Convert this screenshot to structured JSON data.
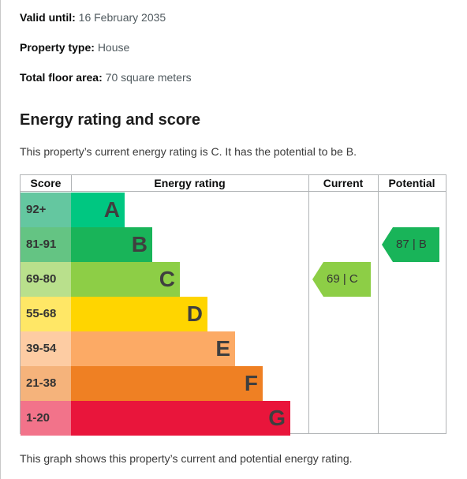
{
  "details": {
    "valid_until_label": "Valid until:",
    "valid_until_value": "16 February 2035",
    "property_type_label": "Property type:",
    "property_type_value": "House",
    "floor_area_label": "Total floor area:",
    "floor_area_value": "70 square meters"
  },
  "section": {
    "heading": "Energy rating and score",
    "summary": "This property’s current energy rating is C. It has the potential to be B.",
    "footer": "This graph shows this property’s current and potential energy rating."
  },
  "table": {
    "headers": {
      "score": "Score",
      "rating": "Energy rating",
      "current": "Current",
      "potential": "Potential"
    },
    "bands": [
      {
        "score": "92+",
        "letter": "A",
        "bar_color": "#00c781",
        "score_bg": "#64c7a0"
      },
      {
        "score": "81-91",
        "letter": "B",
        "bar_color": "#19b459",
        "score_bg": "#64c483"
      },
      {
        "score": "69-80",
        "letter": "C",
        "bar_color": "#8dce46",
        "score_bg": "#b9e08c"
      },
      {
        "score": "55-68",
        "letter": "D",
        "bar_color": "#ffd500",
        "score_bg": "#ffe766"
      },
      {
        "score": "39-54",
        "letter": "E",
        "bar_color": "#fcaa65",
        "score_bg": "#fdcca3"
      },
      {
        "score": "21-38",
        "letter": "F",
        "bar_color": "#ef8023",
        "score_bg": "#f5b37b"
      },
      {
        "score": "1-20",
        "letter": "G",
        "bar_color": "#e9153b",
        "score_bg": "#f2738a"
      }
    ],
    "current": {
      "label": "69 | C",
      "band": "C",
      "color": "#8dce46"
    },
    "potential": {
      "label": "87 | B",
      "band": "B",
      "color": "#19b459"
    }
  }
}
